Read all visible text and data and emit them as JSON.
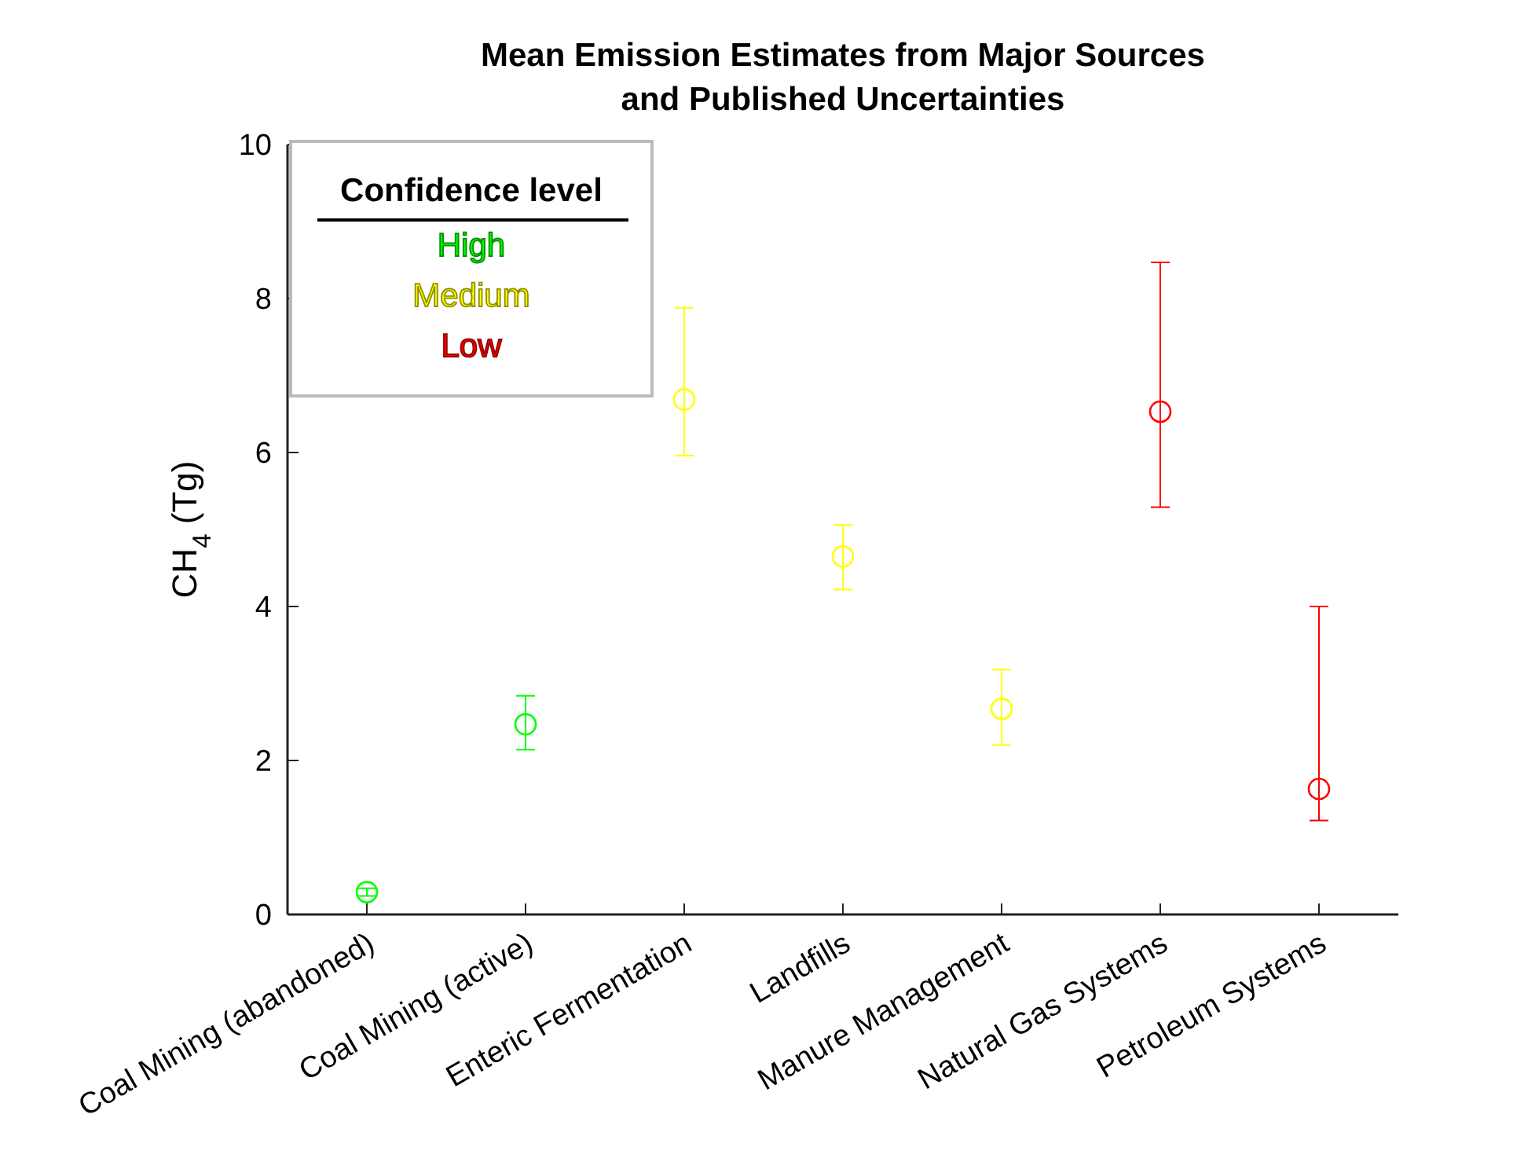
{
  "chart_data": {
    "type": "scatter",
    "title": "Mean Emission Estimates from Major Sources\nand Published Uncertainties",
    "ylabel": "CH$_{4}$ (Tg)",
    "categories": [
      "Coal Mining (abandoned)",
      "Coal Mining (active)",
      "Enteric Fermentation",
      "Landfills",
      "Manure Management",
      "Natural Gas Systems",
      "Petroleum Systems"
    ],
    "ylim": [
      0,
      10
    ],
    "yticks": [
      0,
      2,
      4,
      6,
      8,
      10
    ],
    "grid": false,
    "marker": "circle",
    "legend": "top left",
    "legend_title": "Confidence level",
    "series": [
      {
        "name": "High",
        "color": "#00ff00",
        "x": [
          "Coal Mining (abandoned)",
          "Coal Mining (active)"
        ],
        "values": [
          0.29,
          2.47
        ],
        "errors": [
          [
            0.24,
            0.34
          ],
          [
            2.14,
            2.84
          ]
        ]
      },
      {
        "name": "Medium",
        "color": "#ffff00",
        "x": [
          "Enteric Fermentation",
          "Landfills",
          "Manure Management"
        ],
        "values": [
          6.69,
          4.65,
          2.67
        ],
        "errors": [
          [
            5.96,
            7.88
          ],
          [
            4.22,
            5.06
          ],
          [
            2.2,
            3.18
          ]
        ]
      },
      {
        "name": "Low",
        "color": "#ff0000",
        "x": [
          "Natural Gas Systems",
          "Petroleum Systems"
        ],
        "values": [
          6.53,
          1.63
        ],
        "errors": [
          [
            5.29,
            8.47
          ],
          [
            1.22,
            4.0
          ]
        ]
      }
    ]
  }
}
